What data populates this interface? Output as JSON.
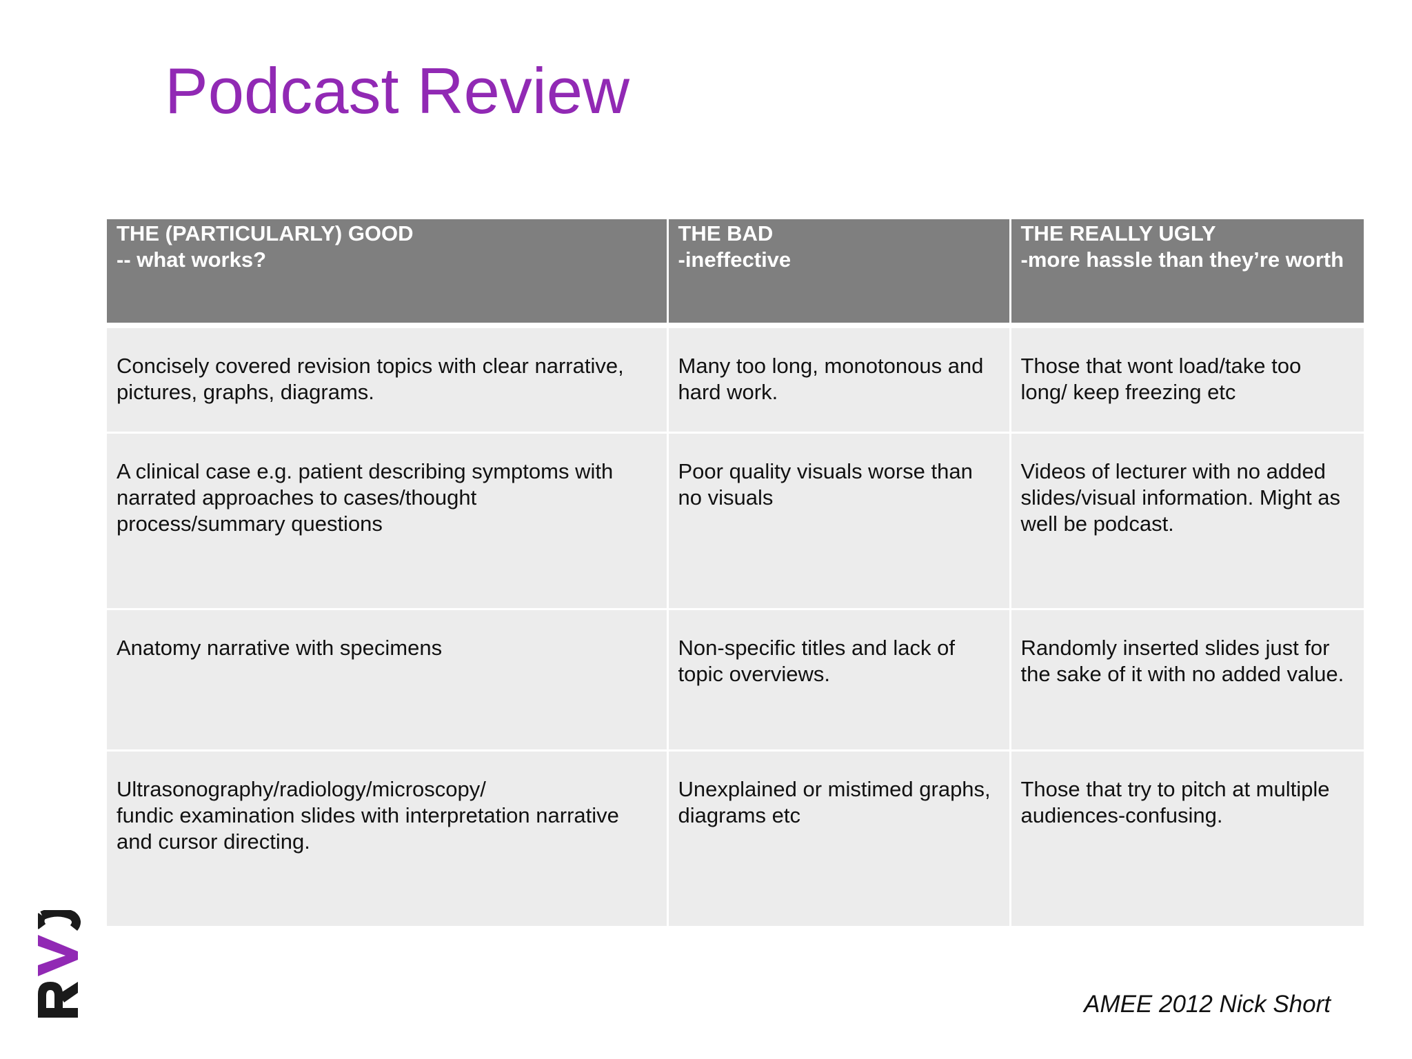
{
  "title": "Podcast Review",
  "table": {
    "headers": [
      {
        "line1": "THE (PARTICULARLY) GOOD",
        "line2": "-- what works?"
      },
      {
        "line1": "THE BAD",
        "line2": "-ineffective"
      },
      {
        "line1": "THE REALLY UGLY",
        "line2": "-more hassle than they’re worth"
      }
    ],
    "rows": [
      {
        "good": [
          "Concisely covered revision topics with clear narrative,",
          "pictures, graphs, diagrams."
        ],
        "bad": [
          "Many too long, monotonous and",
          "hard work."
        ],
        "ugly": [
          "Those that wont load/take too",
          "long/ keep freezing etc"
        ]
      },
      {
        "good": [
          "A clinical case e.g. patient describing symptoms with",
          "narrated approaches to cases/thought",
          "process/summary questions"
        ],
        "bad": [
          "Poor quality visuals worse than",
          "no visuals"
        ],
        "ugly": [
          "Videos of lecturer with no added",
          "slides/visual information. Might as",
          "well be podcast."
        ]
      },
      {
        "good": [
          "Anatomy narrative with specimens"
        ],
        "bad": [
          "Non-specific titles and lack of",
          "topic overviews."
        ],
        "ugly": [
          "Randomly inserted slides just for",
          "the sake of it with no added value."
        ]
      },
      {
        "good": [
          "Ultrasonography/radiology/microscopy/",
          "fundic examination slides with interpretation narrative",
          "and cursor directing."
        ],
        "bad": [
          "Unexplained or mistimed graphs,",
          "diagrams etc"
        ],
        "ugly": [
          "Those that try to pitch at multiple",
          "audiences-confusing."
        ]
      }
    ]
  },
  "logo": {
    "text": "RVC",
    "colors": {
      "letters": "#1a1a1a",
      "accent": "#9129b4"
    }
  },
  "footer": "AMEE 2012 Nick Short",
  "colors": {
    "title": "#9129b4",
    "header_bg": "#7f7f7f",
    "header_text": "#ffffff",
    "cell_bg": "#ececec",
    "body_text": "#111111"
  }
}
